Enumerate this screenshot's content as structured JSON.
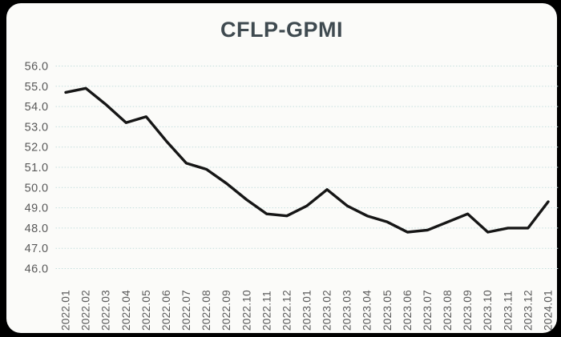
{
  "window": {
    "background_color": "#000000",
    "card_color": "#fbfbf9"
  },
  "chart_data": {
    "type": "line",
    "title": "CFLP-GPMI",
    "title_color": "#3f4a50",
    "categories": [
      "2022.01",
      "2022.02",
      "2022.03",
      "2022.04",
      "2022.05",
      "2022.06",
      "2022.07",
      "2022.08",
      "2022.09",
      "2022.10",
      "2022.11",
      "2022.12",
      "2023.01",
      "2023.02",
      "2023.03",
      "2023.04",
      "2023.05",
      "2023.06",
      "2023.07",
      "2023.08",
      "2023.09",
      "2023.10",
      "2023.11",
      "2023.12",
      "2024.01"
    ],
    "series": [
      {
        "name": "CFLP-GPMI",
        "values": [
          54.7,
          54.9,
          54.1,
          53.2,
          53.5,
          52.3,
          51.2,
          50.9,
          50.2,
          49.4,
          48.7,
          48.6,
          49.1,
          49.9,
          49.1,
          48.6,
          48.3,
          47.8,
          47.9,
          48.3,
          48.7,
          47.8,
          48.0,
          48.0,
          49.3
        ]
      }
    ],
    "xlabel": "",
    "ylabel": "",
    "ylim": [
      46.0,
      56.0
    ],
    "ytick_step": 1.0,
    "ytick_labels": [
      "46.0",
      "47.0",
      "48.0",
      "49.0",
      "50.0",
      "51.0",
      "52.0",
      "53.0",
      "54.0",
      "55.0",
      "56.0"
    ],
    "grid": "horizontal dotted",
    "grid_color": "#c4dedd",
    "legend_position": "none",
    "line_color": "#161616",
    "tick_label_color": "#595959",
    "x_labels_rotation_deg": -90
  }
}
